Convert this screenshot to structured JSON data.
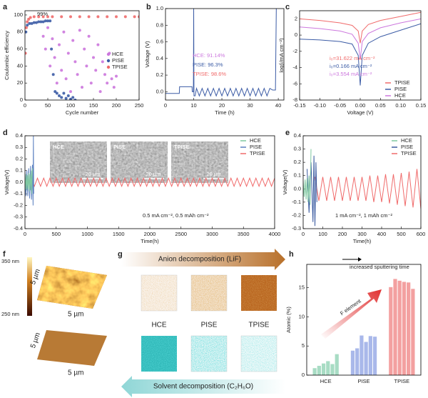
{
  "panel_labels": [
    "a",
    "b",
    "c",
    "d",
    "e",
    "f",
    "g",
    "h"
  ],
  "chart_data": [
    {
      "type": "scatter",
      "xlabel": "Cycle number",
      "ylabel": "Coulombic efficiency",
      "xlim": [
        0,
        250
      ],
      "ylim": [
        0,
        105
      ],
      "xticks": [
        0,
        50,
        100,
        150,
        200,
        250
      ],
      "yticks": [
        0,
        20,
        40,
        60,
        80,
        100
      ],
      "legend": "right",
      "annotations": [
        {
          "text": "99%"
        }
      ],
      "series": [
        {
          "name": "HCE",
          "color": "#cc77dd",
          "x": [
            40,
            45,
            50,
            55,
            60,
            65,
            70,
            75,
            80,
            85,
            90,
            95,
            100,
            105,
            110,
            115,
            120,
            125,
            130,
            135,
            140,
            145,
            150,
            155,
            160,
            165,
            170,
            175,
            180,
            185,
            190,
            195,
            200
          ],
          "values": [
            75,
            60,
            85,
            40,
            72,
            50,
            20,
            65,
            35,
            80,
            25,
            55,
            10,
            70,
            45,
            30,
            82,
            15,
            60,
            40,
            75,
            20,
            50,
            35,
            65,
            10,
            45,
            30,
            20,
            55,
            25,
            15,
            28
          ]
        },
        {
          "name": "PISE",
          "color": "#3b5ba5",
          "x": [
            2,
            5,
            10,
            15,
            20,
            25,
            30,
            35,
            40,
            45,
            50,
            55,
            58,
            62,
            66,
            70,
            75,
            80,
            85,
            90,
            95,
            100,
            105,
            110
          ],
          "values": [
            80,
            88,
            90,
            90,
            91,
            91,
            92,
            92,
            92,
            93,
            93,
            93,
            60,
            30,
            10,
            8,
            5,
            3,
            8,
            2,
            5,
            1,
            3,
            0
          ]
        },
        {
          "name": "TPISE",
          "color": "#f06a6a",
          "x": [
            1,
            3,
            5,
            8,
            12,
            20,
            30,
            40,
            50,
            60,
            80,
            100,
            120,
            140,
            160,
            180,
            200,
            220,
            240,
            250
          ],
          "values": [
            55,
            85,
            92,
            95,
            97,
            98,
            98,
            98,
            98,
            98,
            98,
            98,
            98,
            98,
            98,
            98,
            98,
            98,
            98,
            98
          ]
        }
      ]
    },
    {
      "type": "line",
      "xlabel": "Time (h)",
      "ylabel": "Voltage (V)",
      "xlim": [
        0,
        42
      ],
      "ylim": [
        -0.1,
        1.0
      ],
      "xticks": [
        0,
        10,
        20,
        30,
        40
      ],
      "yticks": [
        {
          "value": 0,
          "label": "0.0"
        },
        0.2,
        0.4,
        0.6,
        0.8,
        {
          "value": 1,
          "label": "1.0"
        }
      ],
      "annotations": [
        {
          "text": "HCE: 91.14%",
          "color": "#cc77dd"
        },
        {
          "text": "PISE: 96.3%",
          "color": "#3b5ba5"
        },
        {
          "text": "TPISE: 98.6%",
          "color": "#f06a6a"
        }
      ],
      "series": [
        {
          "color": "#3b5ba5",
          "x": [
            0,
            4.9,
            5,
            9.4,
            9.5,
            9.9,
            10,
            10.1,
            10.5,
            11,
            12,
            13,
            14,
            15,
            16,
            17,
            18,
            19,
            20,
            21,
            22,
            23,
            24,
            25,
            26,
            27,
            28,
            29,
            30,
            31,
            32,
            33,
            34,
            35,
            36,
            37,
            38,
            39,
            39.3
          ],
          "values": [
            -0.02,
            -0.02,
            0.06,
            0.06,
            0.0,
            0.0,
            1.0,
            -0.05,
            -0.05,
            0.04,
            -0.05,
            0.04,
            -0.05,
            0.04,
            -0.05,
            0.04,
            -0.05,
            0.04,
            -0.05,
            0.04,
            -0.05,
            0.04,
            -0.05,
            0.04,
            -0.05,
            0.04,
            -0.05,
            0.04,
            -0.05,
            0.04,
            -0.05,
            0.04,
            -0.05,
            0.04,
            -0.05,
            0.04,
            0.02,
            0.02,
            1.0
          ]
        }
      ]
    },
    {
      "type": "line",
      "xlabel": "Voltage (V)",
      "ylabel": "log(i/mA cm⁻²)",
      "xlim": [
        -0.15,
        0.15
      ],
      "ylim": [
        -8,
        3
      ],
      "xticks": [
        -0.15,
        {
          "value": -0.1,
          "label": "-0.10"
        },
        -0.05,
        {
          "value": 0,
          "label": "0.00"
        },
        0.05,
        {
          "value": 0.1,
          "label": "0.10"
        },
        0.15
      ],
      "yticks": [
        -8,
        -6,
        -4,
        -2,
        0,
        2
      ],
      "legend": "lower right",
      "annotations": [
        {
          "text": "i₀=31.622 mA cm⁻²",
          "color": "#f06a6a"
        },
        {
          "text": "i₀=0.166 mA cm⁻²",
          "color": "#3b5ba5"
        },
        {
          "text": "i₀=3.554 mA cm⁻²",
          "color": "#cc77dd"
        }
      ],
      "series": [
        {
          "name": "TPISE",
          "color": "#f06a6a",
          "x": [
            -0.15,
            -0.1,
            -0.05,
            -0.02,
            -0.005,
            0,
            0.005,
            0.02,
            0.05,
            0.1,
            0.15
          ],
          "values": [
            2.0,
            1.8,
            1.5,
            1.2,
            0.5,
            -1.0,
            0.5,
            1.3,
            1.8,
            2.3,
            2.8
          ]
        },
        {
          "name": "PISE",
          "color": "#3b5ba5",
          "x": [
            -0.15,
            -0.1,
            -0.05,
            -0.02,
            -0.005,
            0,
            0.005,
            0.02,
            0.05,
            0.1,
            0.15
          ],
          "values": [
            -0.5,
            -0.6,
            -0.8,
            -1.1,
            -2.5,
            -6.2,
            -2.5,
            -1.0,
            -0.2,
            0.6,
            1.4
          ]
        },
        {
          "name": "HCE",
          "color": "#cc77dd",
          "x": [
            -0.15,
            -0.1,
            -0.05,
            -0.02,
            -0.005,
            0,
            0.005,
            0.02,
            0.05,
            0.1,
            0.15
          ],
          "values": [
            1.0,
            0.8,
            0.5,
            0.1,
            -1.0,
            -3.0,
            -0.8,
            0.2,
            0.9,
            1.5,
            2.0
          ]
        }
      ]
    },
    {
      "type": "line",
      "xlabel": "Time(h)",
      "ylabel": "Voltage(V)",
      "xlim": [
        0,
        4000
      ],
      "ylim": [
        -0.4,
        0.4
      ],
      "xticks": [
        0,
        500,
        1000,
        1500,
        2000,
        2500,
        3000,
        3500,
        4000
      ],
      "yticks": [
        -0.4,
        -0.3,
        -0.2,
        -0.1,
        {
          "value": 0,
          "label": "0.0"
        },
        0.1,
        0.2,
        0.3,
        0.4
      ],
      "legend": "upper right",
      "annotations": [
        {
          "text": "0.5 mA cm⁻², 0.5 mAh cm⁻²"
        }
      ],
      "insets": [
        {
          "label": "HCE",
          "scale": "20 µm"
        },
        {
          "label": "PISE",
          "scale": "20 µm"
        },
        {
          "label": "TPISE",
          "scale": "20 µm"
        }
      ],
      "series": [
        {
          "name": "HCE",
          "color": "#7fc8a0",
          "x": [
            0,
            10,
            20,
            30,
            40,
            50,
            60,
            70,
            80,
            90,
            100,
            110,
            120
          ],
          "values": [
            0.06,
            -0.06,
            0.07,
            -0.07,
            0.06,
            -0.06,
            0.08,
            -0.08,
            0.07,
            -0.07,
            0.1,
            -0.1,
            0.12
          ]
        },
        {
          "name": "PISE",
          "color": "#5a7fc0",
          "x": [
            0,
            15,
            30,
            45,
            60,
            75,
            90,
            105,
            120,
            130,
            135,
            140
          ],
          "values": [
            0.1,
            -0.12,
            0.1,
            -0.12,
            0.12,
            -0.14,
            0.14,
            -0.15,
            0.15,
            -0.2,
            0.4,
            -0.1
          ]
        },
        {
          "name": "TPISE",
          "color": "#f06b6b",
          "x": [
            100,
            150,
            200,
            250,
            300,
            350,
            400,
            450,
            500,
            550,
            600,
            650,
            700,
            750,
            800,
            850,
            900,
            950,
            1000,
            1050,
            1100,
            1150,
            1200,
            1250,
            1300,
            1350,
            1400,
            1450,
            1500,
            1550,
            1600,
            1650,
            1700,
            1750,
            1800,
            1850,
            1900,
            1950,
            2000,
            2050,
            2100,
            2150,
            2200,
            2250,
            2300,
            2350,
            2400,
            2450,
            2500,
            2550,
            2600,
            2650,
            2700,
            2750,
            2800,
            2850,
            2900,
            2950,
            3000,
            3050,
            3100,
            3150,
            3200,
            3250,
            3300,
            3350,
            3400,
            3450,
            3500,
            3550,
            3600,
            3650,
            3700,
            3750,
            3800,
            3850,
            3900,
            3950,
            4000
          ],
          "values": [
            0.035,
            -0.035,
            0.035,
            -0.035,
            0.035,
            -0.035,
            0.035,
            -0.035,
            0.035,
            -0.035,
            0.035,
            -0.035,
            0.035,
            -0.035,
            0.035,
            -0.035,
            0.035,
            -0.035,
            0.035,
            -0.035,
            0.035,
            -0.035,
            0.035,
            -0.035,
            0.035,
            -0.035,
            0.035,
            -0.035,
            0.035,
            -0.035,
            0.035,
            -0.035,
            0.035,
            -0.035,
            0.035,
            -0.035,
            0.035,
            -0.035,
            0.035,
            -0.035,
            0.035,
            -0.035,
            0.035,
            -0.035,
            0.035,
            -0.035,
            0.035,
            -0.035,
            0.035,
            -0.035,
            0.035,
            -0.035,
            0.035,
            -0.035,
            0.035,
            -0.035,
            0.035,
            -0.035,
            0.035,
            -0.035,
            0.035,
            -0.035,
            0.035,
            -0.035,
            0.035,
            -0.035,
            0.035,
            -0.035,
            0.035,
            -0.035,
            0.035,
            -0.035,
            0.035,
            -0.035,
            0.035,
            -0.035,
            0.035,
            -0.035,
            0.035
          ]
        }
      ]
    },
    {
      "type": "line",
      "xlabel": "Time(h)",
      "ylabel": "Voltage(V)",
      "xlim": [
        0,
        600
      ],
      "ylim": [
        -0.3,
        0.4
      ],
      "xticks": [
        0,
        100,
        200,
        300,
        400,
        500,
        600
      ],
      "yticks": [
        -0.3,
        -0.2,
        -0.1,
        {
          "value": 0,
          "label": "0.0"
        },
        0.1,
        0.2,
        0.3,
        0.4
      ],
      "legend": "upper right",
      "annotations": [
        {
          "text": "1 mA cm⁻², 1 mAh cm⁻²"
        }
      ],
      "series": [
        {
          "name": "HCE",
          "color": "#7fc8a0",
          "x": [
            0,
            5,
            10,
            15,
            20,
            25,
            30,
            35,
            40
          ],
          "values": [
            0.06,
            -0.06,
            0.07,
            -0.08,
            0.08,
            -0.1,
            0.1,
            -0.12,
            0.3
          ]
        },
        {
          "name": "PISE",
          "color": "#3a5aa0",
          "x": [
            20,
            30,
            40,
            50,
            55,
            60,
            65,
            70
          ],
          "values": [
            0.15,
            -0.18,
            0.2,
            -0.25,
            0.25,
            -0.28,
            0.2,
            -0.1
          ]
        },
        {
          "name": "TPISE",
          "color": "#f06b6b",
          "x": [
            60,
            80,
            100,
            120,
            140,
            160,
            180,
            200,
            220,
            240,
            260,
            280,
            300,
            320,
            340,
            360,
            380,
            400,
            420,
            440,
            460,
            480,
            500,
            520,
            540,
            560,
            580,
            600
          ],
          "values": [
            0.09,
            -0.09,
            0.09,
            -0.09,
            0.09,
            -0.09,
            0.09,
            -0.09,
            0.09,
            -0.09,
            0.09,
            -0.09,
            0.09,
            -0.09,
            0.1,
            -0.1,
            0.1,
            -0.1,
            0.11,
            -0.11,
            0.11,
            -0.12,
            0.12,
            -0.13,
            0.13,
            -0.14,
            0.15,
            -0.15
          ]
        }
      ]
    },
    {
      "type": "bar",
      "ylabel": "Atomic (%)",
      "ylim": [
        0,
        19
      ],
      "yticks": [
        0,
        5,
        10,
        15
      ],
      "categories": [
        "HCE",
        "PISE",
        "TPISE"
      ],
      "colors": [
        "#a8dcc4",
        "#a9b8ea",
        "#f3a0a0"
      ],
      "annotations": [
        {
          "text": "increased sputtering time"
        },
        {
          "text": "F element"
        }
      ],
      "values": [
        [
          1.2,
          1.6,
          2.0,
          2.4,
          1.9,
          3.6
        ],
        [
          4.2,
          4.6,
          6.8,
          5.7,
          6.7,
          6.6
        ],
        [
          15.1,
          16.5,
          16.2,
          16.0,
          15.9,
          14.8
        ]
      ]
    }
  ],
  "afm": {
    "top": "350 nm",
    "bottom": "250 nm",
    "axes": [
      "5 µm",
      "5 µm",
      "5 µm",
      "5 µm"
    ]
  },
  "tof": {
    "anion": "Anion decomposition (LiF)",
    "solvent": "Solvent decomposition (C₂H₆O)",
    "labels": [
      "HCE",
      "PISE",
      "TPISE"
    ]
  }
}
